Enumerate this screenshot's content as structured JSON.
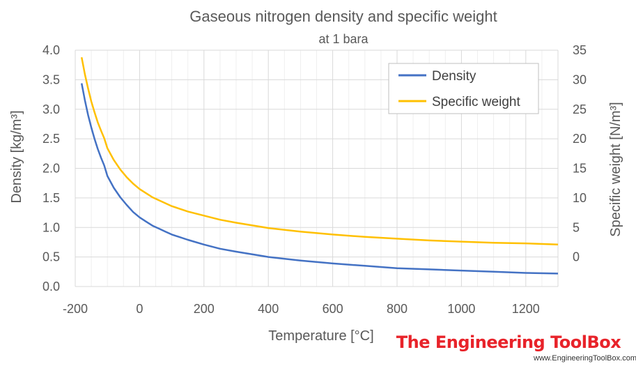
{
  "chart_data": {
    "type": "line",
    "title": "Gaseous nitrogen density and specific weight",
    "subtitle": "at 1 bara",
    "xlabel": "Temperature [°C]",
    "ylabel_left": "Density [kg/m³]",
    "ylabel_right": "Specific weight [N/m³]",
    "xlim": [
      -200,
      1300
    ],
    "ylim_left": [
      0.0,
      4.0
    ],
    "ylim_right": [
      -5,
      35
    ],
    "x_ticks": [
      "-200",
      "0",
      "200",
      "400",
      "600",
      "800",
      "1000",
      "1200"
    ],
    "y_ticks_left": [
      "0.0",
      "0.5",
      "1.0",
      "1.5",
      "2.0",
      "2.5",
      "3.0",
      "3.5",
      "4.0"
    ],
    "y_ticks_right": [
      "0",
      "5",
      "10",
      "15",
      "20",
      "25",
      "30",
      "35"
    ],
    "grid": true,
    "legend_position": "top-right",
    "series": [
      {
        "name": "Density",
        "axis": "left",
        "color": "#4472c4",
        "x": [
          -180,
          -170,
          -160,
          -150,
          -140,
          -130,
          -120,
          -110,
          -100,
          -80,
          -60,
          -40,
          -20,
          0,
          20,
          40,
          60,
          80,
          100,
          150,
          200,
          250,
          300,
          400,
          500,
          600,
          700,
          800,
          900,
          1000,
          1100,
          1200,
          1300
        ],
        "y": [
          3.44,
          3.15,
          2.9,
          2.69,
          2.5,
          2.33,
          2.18,
          2.05,
          1.87,
          1.67,
          1.51,
          1.38,
          1.26,
          1.17,
          1.1,
          1.03,
          0.98,
          0.93,
          0.88,
          0.79,
          0.71,
          0.64,
          0.59,
          0.5,
          0.44,
          0.39,
          0.35,
          0.31,
          0.29,
          0.27,
          0.25,
          0.23,
          0.22
        ]
      },
      {
        "name": "Specific weight",
        "axis": "right",
        "color": "#ffc000",
        "x": [
          -180,
          -170,
          -160,
          -150,
          -140,
          -130,
          -120,
          -110,
          -100,
          -80,
          -60,
          -40,
          -20,
          0,
          20,
          40,
          60,
          80,
          100,
          150,
          200,
          250,
          300,
          400,
          500,
          600,
          700,
          800,
          900,
          1000,
          1100,
          1200,
          1300
        ],
        "y": [
          33.8,
          30.9,
          28.5,
          26.3,
          24.5,
          22.8,
          21.4,
          20.1,
          18.4,
          16.4,
          14.8,
          13.5,
          12.4,
          11.5,
          10.8,
          10.1,
          9.6,
          9.1,
          8.6,
          7.7,
          7.0,
          6.3,
          5.8,
          4.9,
          4.3,
          3.8,
          3.4,
          3.1,
          2.8,
          2.6,
          2.4,
          2.3,
          2.1
        ]
      }
    ]
  },
  "watermark": {
    "brand": "The Engineering ToolBox",
    "url": "www.EngineeringToolBox.com"
  }
}
